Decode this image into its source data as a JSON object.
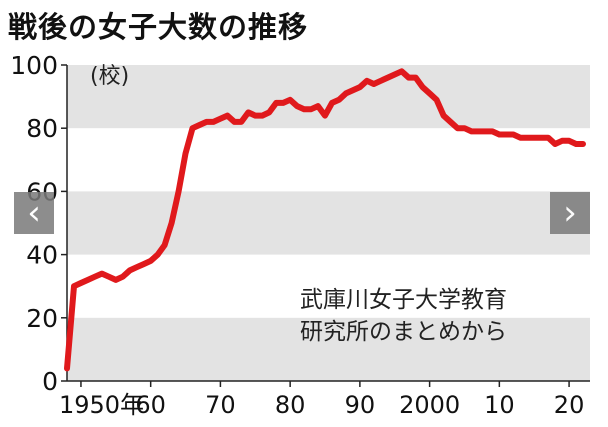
{
  "title": "戦後の女子大数の推移",
  "unit_label": "(校)",
  "source": [
    "武庫川女子大学教育",
    "研究所のまとめから"
  ],
  "nav": {
    "prev_icon": "‹",
    "next_icon": "›"
  },
  "chart_data": {
    "type": "line",
    "title": "戦後の女子大数の推移",
    "ylabel": "(校)",
    "xlabel": "",
    "xlim": [
      1948,
      2023
    ],
    "ylim": [
      0,
      100
    ],
    "yticks": [
      0,
      20,
      40,
      60,
      80,
      100
    ],
    "xticks": [
      {
        "value": 1950,
        "label": "1950年"
      },
      {
        "value": 1960,
        "label": "60"
      },
      {
        "value": 1970,
        "label": "70"
      },
      {
        "value": 1980,
        "label": "80"
      },
      {
        "value": 1990,
        "label": "90"
      },
      {
        "value": 2000,
        "label": "2000"
      },
      {
        "value": 2010,
        "label": "10"
      },
      {
        "value": 2020,
        "label": "20"
      }
    ],
    "grid": "alternating horizontal bands",
    "line_color": "#e0191c",
    "series": [
      {
        "x": [
          1948,
          1949,
          1950,
          1951,
          1952,
          1953,
          1954,
          1955,
          1956,
          1957,
          1958,
          1959,
          1960,
          1961,
          1962,
          1963,
          1964,
          1965,
          1966,
          1967,
          1968,
          1969,
          1970,
          1971,
          1972,
          1973,
          1974,
          1975,
          1976,
          1977,
          1978,
          1979,
          1980,
          1981,
          1982,
          1983,
          1984,
          1985,
          1986,
          1987,
          1988,
          1989,
          1990,
          1991,
          1992,
          1993,
          1994,
          1995,
          1996,
          1997,
          1998,
          1999,
          2000,
          2001,
          2002,
          2003,
          2004,
          2005,
          2006,
          2007,
          2008,
          2009,
          2010,
          2011,
          2012,
          2013,
          2014,
          2015,
          2016,
          2017,
          2018,
          2019,
          2020,
          2021,
          2022
        ],
        "y": [
          4,
          30,
          31,
          32,
          33,
          34,
          33,
          32,
          33,
          35,
          36,
          37,
          38,
          40,
          43,
          50,
          60,
          72,
          80,
          81,
          82,
          82,
          83,
          84,
          82,
          82,
          85,
          84,
          84,
          85,
          88,
          88,
          89,
          87,
          86,
          86,
          87,
          84,
          88,
          89,
          91,
          92,
          93,
          95,
          94,
          95,
          96,
          97,
          98,
          96,
          96,
          93,
          91,
          89,
          84,
          82,
          80,
          80,
          79,
          79,
          79,
          79,
          78,
          78,
          78,
          77,
          77,
          77,
          77,
          77,
          75,
          76,
          76,
          75,
          75
        ]
      }
    ]
  }
}
